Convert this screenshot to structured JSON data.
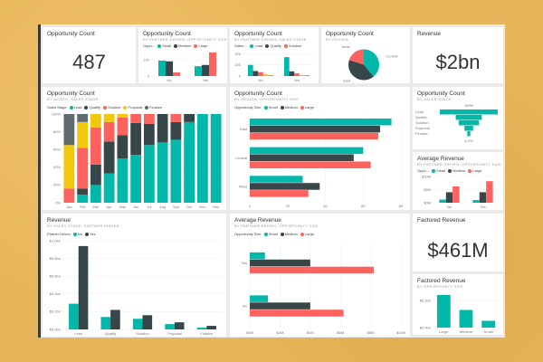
{
  "colors": {
    "teal": "#01B8AA",
    "dark": "#374649",
    "red": "#FD625E",
    "yellow": "#F2C80F",
    "gray": "#5F6B6D"
  },
  "tiles": {
    "opp_count": {
      "title": "Opportunity Count",
      "value": "487"
    },
    "revenue": {
      "title": "Revenue",
      "value": "$2bn"
    },
    "factored": {
      "title": "Factored Revenue",
      "value": "$461M"
    }
  },
  "chart_data": [
    {
      "id": "c1",
      "type": "bar",
      "title": "Opportunity Count",
      "subtitle": "BY PARTNER DRIVEN, OPPORTUNITY SIZE",
      "legend_title": "Oppo...",
      "categories": [
        "No",
        "Yes"
      ],
      "series": [
        {
          "name": "Small",
          "color": "#01B8AA",
          "values": [
            95,
            60
          ]
        },
        {
          "name": "Medium",
          "color": "#374649",
          "values": [
            90,
            68
          ]
        },
        {
          "name": "Large",
          "color": "#FD625E",
          "values": [
            22,
            145
          ]
        }
      ],
      "ylim": [
        0,
        150
      ],
      "yticks": [
        {
          "v": 0,
          "l": "0"
        },
        {
          "v": 100,
          "l": "100"
        }
      ]
    },
    {
      "id": "c2",
      "type": "bar",
      "title": "Opportunity Count",
      "subtitle": "BY PARTNER DRIVEN, SALES STAGE",
      "legend_title": "Sales ...",
      "categories": [
        "No",
        "Yes"
      ],
      "series": [
        {
          "name": "Lead",
          "color": "#01B8AA",
          "values": [
            100,
            170
          ]
        },
        {
          "name": "Qualify",
          "color": "#374649",
          "values": [
            45,
            42
          ]
        },
        {
          "name": "Solution",
          "color": "#FD625E",
          "values": [
            35,
            25
          ]
        },
        {
          "color": "#F2C80F",
          "values": [
            15,
            10
          ]
        },
        {
          "color": "#5F6B6D",
          "values": [
            5,
            5
          ]
        }
      ],
      "ylim": [
        0,
        220
      ],
      "yticks": [
        {
          "v": 0,
          "l": "0"
        },
        {
          "v": 100,
          "l": "100"
        },
        {
          "v": 200,
          "l": "200"
        }
      ]
    },
    {
      "id": "c3",
      "type": "pie",
      "title": "Opportunity Count",
      "subtitle": "BY REGION",
      "slices": [
        {
          "name": "Central",
          "value": 39,
          "color": "#01B8AA"
        },
        {
          "name": "East",
          "value": 41,
          "color": "#374649"
        },
        {
          "name": "West",
          "value": 20,
          "color": "#FD625E"
        }
      ]
    },
    {
      "id": "c4",
      "type": "stacked-bar",
      "title": "Opportunity Count",
      "subtitle": "BY MONTH, SALES STAGE",
      "legend_title": "Sales Stage",
      "categories": [
        "Jan",
        "Feb",
        "Mar",
        "Apr",
        "May",
        "Jun",
        "Jul",
        "Aug",
        "Sep",
        "Oct",
        "Nov",
        "Dec"
      ],
      "series": [
        {
          "name": "Lead",
          "color": "#01B8AA",
          "values": [
            0,
            9,
            20,
            33,
            50,
            54,
            65,
            68,
            71,
            91,
            100,
            100
          ]
        },
        {
          "name": "Qualify",
          "color": "#374649",
          "values": [
            0,
            7,
            23,
            36,
            26,
            36,
            24,
            32,
            20,
            9,
            0,
            0
          ]
        },
        {
          "name": "Solution",
          "color": "#FD625E",
          "values": [
            16,
            46,
            42,
            22,
            20,
            10,
            11,
            0,
            9,
            0,
            0,
            0
          ]
        },
        {
          "name": "Proposal",
          "color": "#F2C80F",
          "values": [
            49,
            29,
            15,
            9,
            4,
            0,
            0,
            0,
            0,
            0,
            0,
            0
          ]
        },
        {
          "name": "Finalize",
          "color": "#5F6B6D",
          "values": [
            35,
            9,
            0,
            0,
            0,
            0,
            0,
            0,
            0,
            0,
            0,
            0
          ]
        }
      ],
      "ylim": [
        0,
        100
      ],
      "yticks": [
        {
          "v": 0,
          "l": "0%"
        },
        {
          "v": 20,
          "l": "20%"
        },
        {
          "v": 40,
          "l": "40%"
        },
        {
          "v": 60,
          "l": "60%"
        },
        {
          "v": 80,
          "l": "80%"
        },
        {
          "v": 100,
          "l": "100%"
        }
      ]
    },
    {
      "id": "c5",
      "type": "hbar",
      "title": "Opportunity Count",
      "subtitle": "BY REGION, OPPORTUNITY SIZE",
      "legend_title": "Opportunity Size",
      "categories": [
        "East",
        "Central",
        "West"
      ],
      "series": [
        {
          "name": "Small",
          "color": "#01B8AA",
          "values": [
            75,
            60,
            28
          ]
        },
        {
          "name": "Medium",
          "color": "#374649",
          "values": [
            69,
            55,
            37
          ]
        },
        {
          "name": "Large",
          "color": "#FD625E",
          "values": [
            68,
            64,
            31
          ]
        }
      ],
      "xlim": [
        0,
        80
      ],
      "xticks": [
        {
          "v": 0,
          "l": "0"
        },
        {
          "v": 20,
          "l": "20"
        },
        {
          "v": 40,
          "l": "40"
        },
        {
          "v": 60,
          "l": "60"
        },
        {
          "v": 80,
          "l": "80"
        }
      ]
    },
    {
      "id": "c6",
      "type": "funnel",
      "title": "Opportunity Count",
      "subtitle": "BY SALES STAGE",
      "top_label": "100%",
      "bottom_label": "5.2%",
      "categories": [
        "Lead",
        "Qualify",
        "Solution",
        "Proposal",
        "Finalize"
      ],
      "values": [
        100,
        45,
        35,
        15,
        5.2
      ],
      "color": "#01B8AA"
    },
    {
      "id": "c7",
      "type": "bar",
      "title": "Average Revenue",
      "subtitle": "BY PARTNER DRIVEN, OPPORTUNITY SIZE",
      "legend_title": "Oppo...",
      "categories": [
        "No",
        "Yes"
      ],
      "series": [
        {
          "name": "Small",
          "color": "#01B8AA",
          "values": [
            1.2,
            1.0
          ]
        },
        {
          "name": "Medium",
          "color": "#374649",
          "values": [
            4,
            4
          ]
        },
        {
          "name": "Large",
          "color": "#FD625E",
          "values": [
            6.2,
            8.2
          ]
        }
      ],
      "ylim": [
        0,
        10
      ],
      "yticks": [
        {
          "v": 0,
          "l": "$0M"
        },
        {
          "v": 5,
          "l": "$5M"
        },
        {
          "v": 10,
          "l": "$10M"
        }
      ]
    },
    {
      "id": "c8",
      "type": "bar",
      "title": "Revenue",
      "subtitle": "BY SALES STAGE, PARTNER DRIVEN",
      "legend_title": "Partner Driven",
      "categories": [
        "Lead",
        "Qualify",
        "Solution",
        "Proposal",
        "Finalize"
      ],
      "series": [
        {
          "name": "No",
          "color": "#01B8AA",
          "values": [
            0.29,
            0.14,
            0.12,
            0.06,
            0.02
          ]
        },
        {
          "name": "Yes",
          "color": "#374649",
          "values": [
            0.94,
            0.22,
            0.16,
            0.08,
            0.04
          ]
        }
      ],
      "ylim": [
        0,
        1
      ],
      "yticks": [
        {
          "v": 0,
          "l": "$0.0bn"
        },
        {
          "v": 0.2,
          "l": "$0.2bn"
        },
        {
          "v": 0.4,
          "l": "$0.4bn"
        },
        {
          "v": 0.6,
          "l": "$0.6bn"
        },
        {
          "v": 0.8,
          "l": "$0.8bn"
        },
        {
          "v": 1,
          "l": "$1.0bn"
        }
      ]
    },
    {
      "id": "c9",
      "type": "hbar",
      "title": "Average Revenue",
      "subtitle": "BY PARTNER DRIVEN, OPPORTUNITY SIZE",
      "legend_title": "Opportunity Size",
      "categories": [
        "Yes",
        "No"
      ],
      "series": [
        {
          "name": "Small",
          "color": "#01B8AA",
          "values": [
            1.0,
            1.2
          ]
        },
        {
          "name": "Medium",
          "color": "#374649",
          "values": [
            4.0,
            4.0
          ]
        },
        {
          "name": "Large",
          "color": "#FD625E",
          "values": [
            8.2,
            6.2
          ]
        }
      ],
      "xlim": [
        0,
        10
      ],
      "xticks": [
        {
          "v": 0,
          "l": "$0M"
        },
        {
          "v": 2,
          "l": "$2M"
        },
        {
          "v": 4,
          "l": "$4M"
        },
        {
          "v": 6,
          "l": "$6M"
        },
        {
          "v": 8,
          "l": "$8M"
        },
        {
          "v": 10,
          "l": "$10M"
        }
      ]
    },
    {
      "id": "c10",
      "type": "bar",
      "title": "Factored Revenue",
      "subtitle": "BY OPPORTUNITY SIZE",
      "categories": [
        "Large",
        "Medium",
        "Small"
      ],
      "series": [
        {
          "color": "#01B8AA",
          "values": [
            0.24,
            0.13,
            0.05
          ]
        }
      ],
      "ylim": [
        0,
        0.26
      ],
      "yticks": [
        {
          "v": 0,
          "l": "$0.0bn"
        },
        {
          "v": 0.2,
          "l": "$0.2bn"
        }
      ]
    }
  ]
}
